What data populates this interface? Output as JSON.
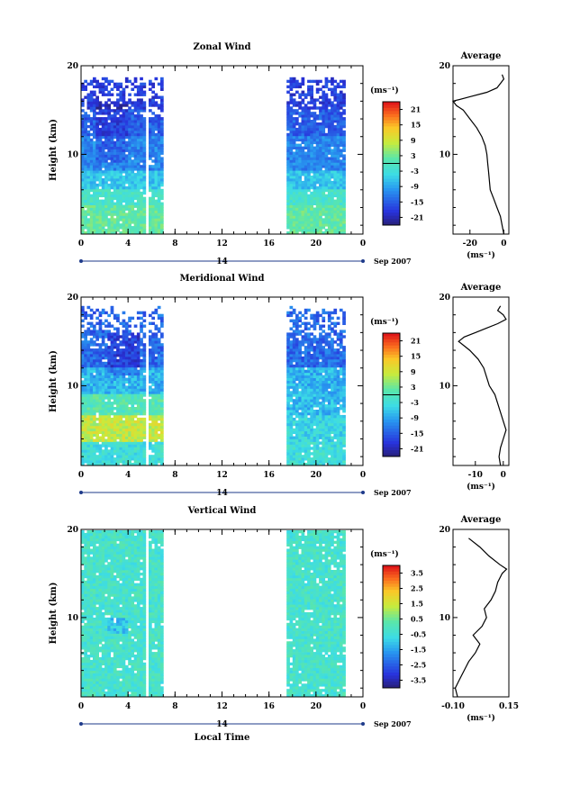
{
  "month_label": "Sep 2007",
  "day_label": "14",
  "xlabel_bottom": "Local Time",
  "units_label": "(ms⁻¹)",
  "chart_data": [
    {
      "type": "heatmap",
      "title": "Zonal Wind",
      "xlabel": "",
      "ylabel": "Height (km)",
      "x_ticks": [
        "0",
        "4",
        "8",
        "12",
        "16",
        "20",
        "0"
      ],
      "xlim": [
        0,
        24
      ],
      "ylim": [
        1,
        20
      ],
      "y_ticks": [
        "20",
        "10"
      ],
      "data_x_ranges": [
        [
          0,
          7
        ],
        [
          17.5,
          22.5
        ]
      ],
      "colorbar": {
        "ticks": [
          "21",
          "15",
          "9",
          "3",
          "-3",
          "-9",
          "-15",
          "-21"
        ],
        "range": [
          -24,
          24
        ]
      },
      "profile": {
        "title": "Average",
        "xlabel": "(ms⁻¹)",
        "x_ticks": [
          "-20",
          "0"
        ],
        "xlim": [
          -30,
          3
        ],
        "ylim": [
          1,
          20
        ],
        "heights": [
          1,
          2,
          3,
          4,
          5,
          6,
          7,
          8,
          9,
          10,
          11,
          12,
          13,
          14,
          15,
          15.5,
          16,
          16.5,
          17,
          17.5,
          18,
          18.5,
          19
        ],
        "values": [
          0,
          -1,
          -2,
          -4,
          -6,
          -8,
          -8.5,
          -9,
          -9.5,
          -10,
          -11,
          -13,
          -16,
          -20,
          -24,
          -28,
          -30,
          -20,
          -10,
          -4,
          -2,
          0,
          -1
        ]
      }
    },
    {
      "type": "heatmap",
      "title": "Meridional Wind",
      "xlabel": "",
      "ylabel": "Height (km)",
      "x_ticks": [
        "0",
        "4",
        "8",
        "12",
        "16",
        "20",
        "0"
      ],
      "xlim": [
        0,
        24
      ],
      "ylim": [
        1,
        20
      ],
      "y_ticks": [
        "20",
        "10"
      ],
      "data_x_ranges": [
        [
          0,
          7
        ],
        [
          17.5,
          22.5
        ]
      ],
      "colorbar": {
        "ticks": [
          "21",
          "15",
          "9",
          "3",
          "-3",
          "-9",
          "-15",
          "-21"
        ],
        "range": [
          -24,
          24
        ]
      },
      "profile": {
        "title": "Average",
        "xlabel": "(ms⁻¹)",
        "x_ticks": [
          "-10",
          "0"
        ],
        "xlim": [
          -18,
          2
        ],
        "ylim": [
          1,
          20
        ],
        "heights": [
          1,
          2,
          3,
          4,
          5,
          6,
          7,
          8,
          9,
          10,
          11,
          12,
          13,
          14,
          14.5,
          15,
          15.5,
          16,
          16.5,
          17,
          17.5,
          18,
          18.5,
          19
        ],
        "values": [
          -1,
          -1.5,
          -1,
          0,
          1,
          0,
          -1,
          -2,
          -3,
          -5,
          -6,
          -7,
          -9,
          -12,
          -14,
          -16,
          -14,
          -10,
          -6,
          -2,
          1,
          0,
          -2,
          -1
        ]
      }
    },
    {
      "type": "heatmap",
      "title": "Vertical Wind",
      "xlabel": "Local Time",
      "ylabel": "Height (km)",
      "x_ticks": [
        "0",
        "4",
        "8",
        "12",
        "16",
        "20",
        "0"
      ],
      "xlim": [
        0,
        24
      ],
      "ylim": [
        1,
        20
      ],
      "y_ticks": [
        "20",
        "10"
      ],
      "data_x_ranges": [
        [
          0,
          7
        ],
        [
          17.5,
          22.5
        ]
      ],
      "colorbar": {
        "ticks": [
          "3.5",
          "2.5",
          "1.5",
          "0.5",
          "-0.5",
          "-1.5",
          "-2.5",
          "-3.5"
        ],
        "range": [
          -4,
          4
        ]
      },
      "profile": {
        "title": "Average",
        "xlabel": "(ms⁻¹)",
        "x_ticks": [
          "-0.10",
          "0.15"
        ],
        "xlim": [
          -0.1,
          0.15
        ],
        "ylim": [
          1,
          20
        ],
        "heights": [
          1,
          2,
          3,
          4,
          5,
          6,
          7,
          8,
          9,
          10,
          11,
          12,
          13,
          14,
          15,
          15.5,
          16,
          17,
          18,
          19
        ],
        "values": [
          -0.08,
          -0.09,
          -0.07,
          -0.05,
          -0.03,
          0.0,
          0.02,
          -0.01,
          0.03,
          0.05,
          0.04,
          0.07,
          0.09,
          0.1,
          0.12,
          0.14,
          0.11,
          0.06,
          0.02,
          -0.03
        ]
      }
    }
  ]
}
